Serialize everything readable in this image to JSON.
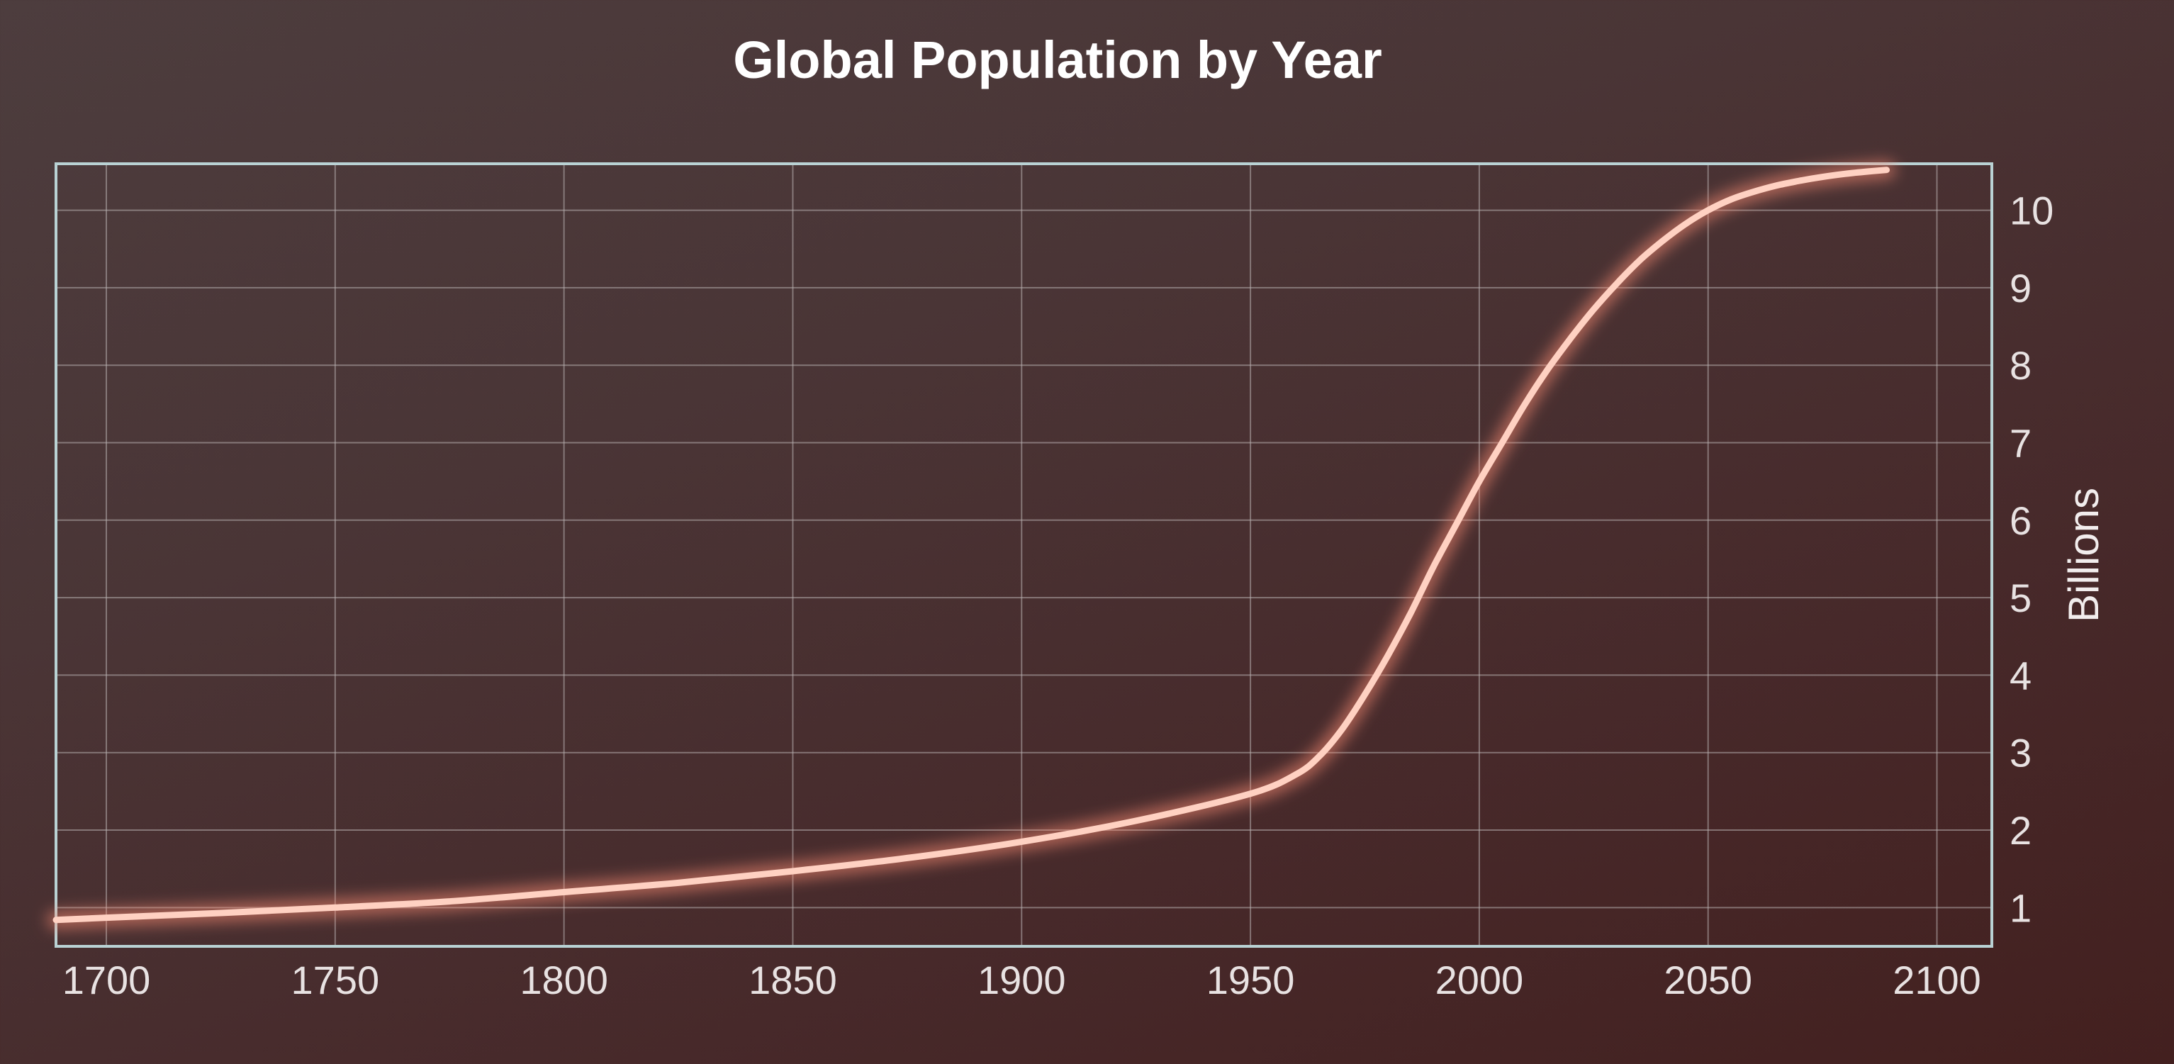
{
  "chart_data": {
    "type": "line",
    "title": "Global Population by Year",
    "xlabel": "",
    "ylabel": "Billions",
    "xlim": [
      1689,
      2112
    ],
    "ylim": [
      0.5,
      10.6
    ],
    "x_ticks": [
      1700,
      1750,
      1800,
      1850,
      1900,
      1950,
      2000,
      2050,
      2100
    ],
    "y_ticks": [
      1,
      2,
      3,
      4,
      5,
      6,
      7,
      8,
      9,
      10
    ],
    "y_axis_position": "right",
    "grid": true,
    "legend": false,
    "series": [
      {
        "x": [
          1689,
          1700,
          1725,
          1750,
          1775,
          1800,
          1825,
          1850,
          1875,
          1900,
          1925,
          1950,
          1960,
          1965,
          1970,
          1975,
          1980,
          1985,
          1990,
          1995,
          2000,
          2005,
          2010,
          2015,
          2020,
          2025,
          2030,
          2035,
          2040,
          2045,
          2050,
          2055,
          2060,
          2065,
          2070,
          2075,
          2080,
          2085,
          2089
        ],
        "y": [
          0.84,
          0.87,
          0.93,
          1.0,
          1.08,
          1.2,
          1.32,
          1.47,
          1.64,
          1.85,
          2.12,
          2.47,
          2.72,
          2.95,
          3.3,
          3.75,
          4.25,
          4.8,
          5.4,
          5.95,
          6.5,
          7.0,
          7.5,
          7.95,
          8.35,
          8.72,
          9.05,
          9.35,
          9.6,
          9.82,
          10.0,
          10.14,
          10.24,
          10.32,
          10.38,
          10.43,
          10.47,
          10.5,
          10.52
        ]
      }
    ],
    "line_color": "#ffd1c2",
    "glow_color": "#ff8e74"
  }
}
